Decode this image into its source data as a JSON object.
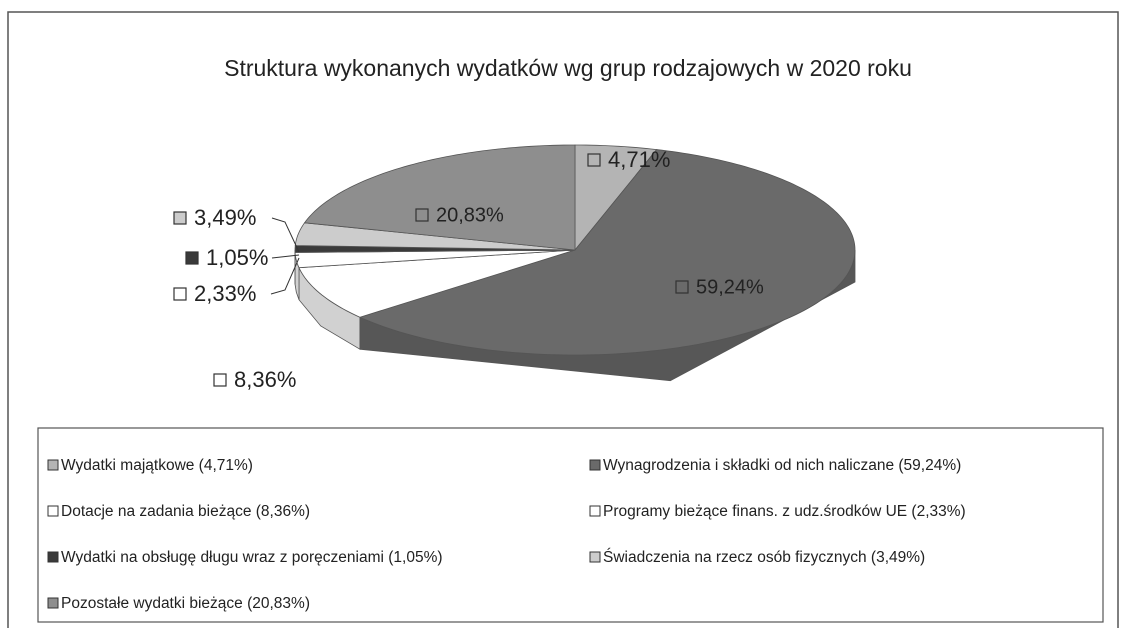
{
  "chart_data": {
    "type": "pie",
    "title": "Struktura wykonanych wydatków wg grup rodzajowych w  2020 roku",
    "categories": [
      "Wydatki majątkowe (4,71%)",
      "Wynagrodzenia i składki od nich naliczane (59,24%)",
      "Dotacje na zadania bieżące (8,36%)",
      "Programy bieżące finans. z udz.środków UE (2,33%)",
      "Wydatki na obsługę długu wraz z poręczeniami (1,05%)",
      "Świadczenia na rzecz osób fizycznych (3,49%)",
      "Pozostałe wydatki bieżące (20,83%)"
    ],
    "values": [
      4.71,
      59.24,
      8.36,
      2.33,
      1.05,
      3.49,
      20.83
    ],
    "value_labels": [
      "4,71%",
      "59,24%",
      "8,36%",
      "2,33%",
      "1,05%",
      "3,49%",
      "20,83%"
    ],
    "colors": [
      "#b4b4b4",
      "#6a6a6a",
      "#ffffff",
      "#ffffff",
      "#3a3a3a",
      "#cccccc",
      "#8e8e8e"
    ]
  }
}
